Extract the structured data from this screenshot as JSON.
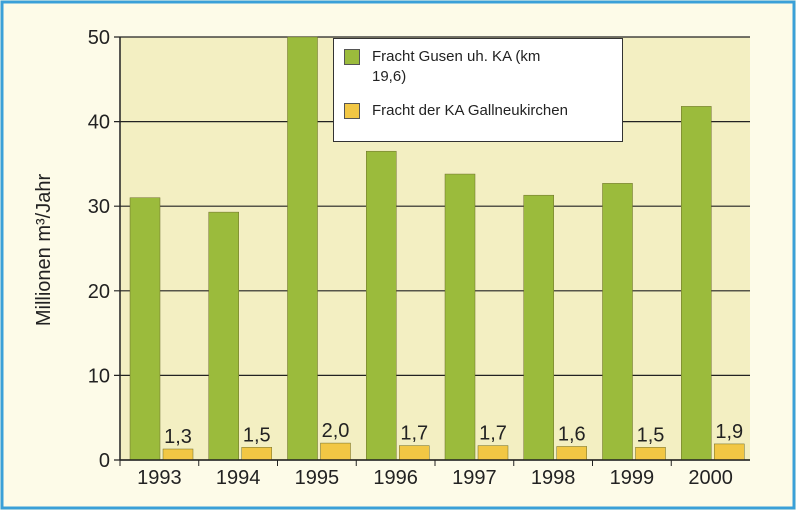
{
  "chart_data": {
    "type": "bar",
    "y_label": "Millionen m³/Jahr",
    "categories": [
      "1993",
      "1994",
      "1995",
      "1996",
      "1997",
      "1998",
      "1999",
      "2000"
    ],
    "series": [
      {
        "name": "Fracht Gusen uh. KA (km 19,6)",
        "color": "#9bbb3c",
        "values": [
          31,
          29.3,
          50,
          36.5,
          33.8,
          31.3,
          32.7,
          41.8
        ]
      },
      {
        "name": "Fracht der KA Gallneukirchen",
        "color": "#f2c744",
        "values": [
          1.3,
          1.5,
          2.0,
          1.7,
          1.7,
          1.6,
          1.5,
          1.9
        ],
        "value_labels": [
          "1,3",
          "1,5",
          "2,0",
          "1,7",
          "1,7",
          "1,6",
          "1,5",
          "1,9"
        ]
      }
    ],
    "ylim": [
      0,
      50
    ],
    "yticks": [
      0,
      10,
      20,
      30,
      40,
      50
    ],
    "grid": true
  }
}
